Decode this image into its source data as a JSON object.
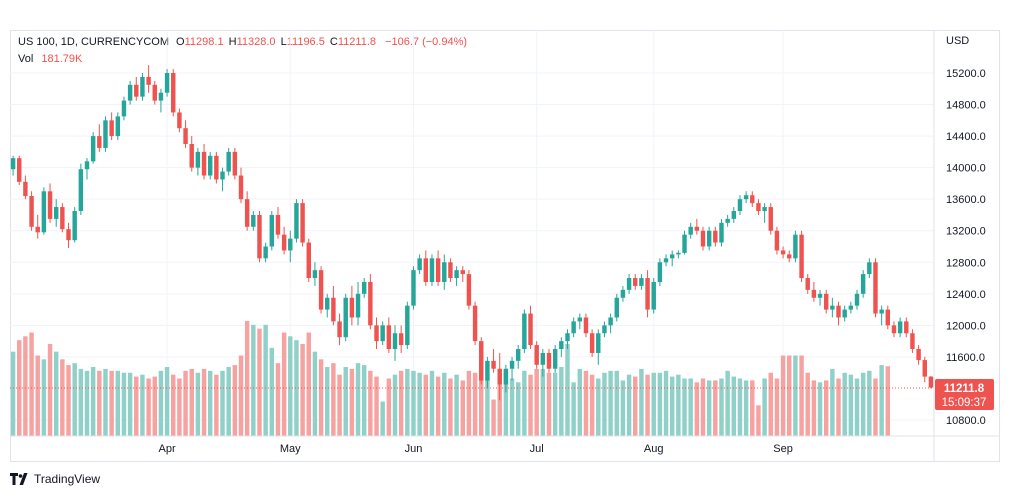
{
  "header": {
    "symbol": "US 100, 1D, CURRENCYCOM",
    "o_label": "O",
    "o_value": "11298.1",
    "h_label": "H",
    "h_value": "11328.0",
    "l_label": "L",
    "l_value": "11196.5",
    "c_label": "C",
    "c_value": "11211.8",
    "change": "−106.7 (−0.94%)",
    "vol_label": "Vol",
    "vol_value": "181.79K"
  },
  "price_scale": {
    "currency": "USD",
    "last_price": "11211.8",
    "countdown": "15:09:37"
  },
  "footer": {
    "brand": "TradingView"
  },
  "colors": {
    "up": "#26a69a",
    "down": "#ef5350",
    "up_vol": "#8fd1c8",
    "down_vol": "#f5a2a0",
    "grid": "#f0f3fa",
    "text": "#131722"
  },
  "chart_data": {
    "type": "candlestick",
    "x_axis_labels": [
      "Apr",
      "May",
      "Jun",
      "Jul",
      "Aug",
      "Sep"
    ],
    "y_ticks": [
      15200.0,
      14800.0,
      14400.0,
      14000.0,
      13600.0,
      13200.0,
      12800.0,
      12400.0,
      12000.0,
      11600.0,
      10800.0
    ],
    "y_tick_labels": [
      "15200.0",
      "14800.0",
      "14400.0",
      "14000.0",
      "13600.0",
      "13200.0",
      "12800.0",
      "12400.0",
      "12000.0",
      "11600.0",
      "10800.0"
    ],
    "ylim": [
      10700,
      15500
    ],
    "grid": true,
    "month_start_index": {
      "Apr": 25,
      "May": 45,
      "Jun": 65,
      "Jul": 85,
      "Aug": 104,
      "Sep": 125
    },
    "candles": [
      [
        13980,
        14150,
        13900,
        14120
      ],
      [
        14120,
        14150,
        13780,
        13820
      ],
      [
        13820,
        13900,
        13600,
        13640
      ],
      [
        13640,
        13700,
        13200,
        13250
      ],
      [
        13250,
        13400,
        13100,
        13180
      ],
      [
        13180,
        13750,
        13150,
        13700
      ],
      [
        13700,
        13800,
        13300,
        13350
      ],
      [
        13350,
        13600,
        13250,
        13500
      ],
      [
        13500,
        13550,
        13180,
        13220
      ],
      [
        13220,
        13300,
        12980,
        13080
      ],
      [
        13080,
        13500,
        13050,
        13450
      ],
      [
        13450,
        14050,
        13400,
        13980
      ],
      [
        13980,
        14120,
        13850,
        14080
      ],
      [
        14080,
        14450,
        14050,
        14400
      ],
      [
        14400,
        14550,
        14200,
        14250
      ],
      [
        14250,
        14650,
        14200,
        14600
      ],
      [
        14600,
        14700,
        14350,
        14400
      ],
      [
        14400,
        14700,
        14350,
        14650
      ],
      [
        14650,
        14900,
        14600,
        14850
      ],
      [
        14850,
        15100,
        14800,
        15050
      ],
      [
        15050,
        15150,
        14850,
        14900
      ],
      [
        14900,
        15200,
        14850,
        15150
      ],
      [
        15150,
        15300,
        14950,
        15050
      ],
      [
        15050,
        15100,
        14800,
        14850
      ],
      [
        14850,
        15000,
        14700,
        14950
      ],
      [
        14950,
        15250,
        14900,
        15200
      ],
      [
        15200,
        15250,
        14650,
        14700
      ],
      [
        14700,
        14750,
        14450,
        14500
      ],
      [
        14500,
        14600,
        14250,
        14300
      ],
      [
        14300,
        14400,
        13950,
        14000
      ],
      [
        14000,
        14250,
        13900,
        14200
      ],
      [
        14200,
        14300,
        13850,
        13900
      ],
      [
        13900,
        14200,
        13850,
        14150
      ],
      [
        14150,
        14200,
        13800,
        13850
      ],
      [
        13850,
        14000,
        13700,
        13950
      ],
      [
        13950,
        14250,
        13900,
        14200
      ],
      [
        14200,
        14250,
        13850,
        13900
      ],
      [
        13900,
        14000,
        13550,
        13600
      ],
      [
        13600,
        13700,
        13200,
        13250
      ],
      [
        13250,
        13450,
        13200,
        13400
      ],
      [
        13400,
        13450,
        12800,
        12850
      ],
      [
        12850,
        13050,
        12800,
        13000
      ],
      [
        13000,
        13450,
        12950,
        13400
      ],
      [
        13400,
        13500,
        13100,
        13150
      ],
      [
        13150,
        13250,
        12900,
        12950
      ],
      [
        12950,
        13200,
        12800,
        13100
      ],
      [
        13100,
        13600,
        13050,
        13550
      ],
      [
        13550,
        13600,
        13000,
        13050
      ],
      [
        13050,
        13100,
        12550,
        12600
      ],
      [
        12600,
        12800,
        12500,
        12700
      ],
      [
        12700,
        12750,
        12150,
        12200
      ],
      [
        12200,
        12400,
        12100,
        12350
      ],
      [
        12350,
        12500,
        12000,
        12050
      ],
      [
        12050,
        12150,
        11750,
        11850
      ],
      [
        11850,
        12400,
        11800,
        12350
      ],
      [
        12350,
        12500,
        12000,
        12100
      ],
      [
        12100,
        12550,
        12000,
        12400
      ],
      [
        12400,
        12600,
        12350,
        12550
      ],
      [
        12550,
        12650,
        11950,
        12000
      ],
      [
        12000,
        12100,
        11700,
        11800
      ],
      [
        11800,
        12050,
        11750,
        12000
      ],
      [
        12000,
        12100,
        11650,
        11700
      ],
      [
        11700,
        12000,
        11550,
        11900
      ],
      [
        11900,
        12000,
        11650,
        11750
      ],
      [
        11750,
        12300,
        11700,
        12250
      ],
      [
        12250,
        12750,
        12200,
        12700
      ],
      [
        12700,
        12900,
        12650,
        12850
      ],
      [
        12850,
        12950,
        12500,
        12550
      ],
      [
        12550,
        12900,
        12500,
        12850
      ],
      [
        12850,
        12950,
        12500,
        12550
      ],
      [
        12550,
        12900,
        12450,
        12800
      ],
      [
        12800,
        12850,
        12550,
        12600
      ],
      [
        12600,
        12750,
        12500,
        12700
      ],
      [
        12700,
        12750,
        12550,
        12650
      ],
      [
        12650,
        12700,
        12200,
        12250
      ],
      [
        12250,
        12300,
        11750,
        11800
      ],
      [
        11800,
        11850,
        11250,
        11300
      ],
      [
        11300,
        11600,
        11200,
        11550
      ],
      [
        11550,
        11700,
        11400,
        11450
      ],
      [
        11450,
        11650,
        11050,
        11250
      ],
      [
        11250,
        11500,
        11150,
        11450
      ],
      [
        11450,
        11600,
        11300,
        11550
      ],
      [
        11550,
        11750,
        11450,
        11700
      ],
      [
        11700,
        12200,
        11650,
        12150
      ],
      [
        12150,
        12250,
        11700,
        11750
      ],
      [
        11750,
        11800,
        11450,
        11500
      ],
      [
        11500,
        11700,
        11350,
        11650
      ],
      [
        11650,
        11700,
        11400,
        11450
      ],
      [
        11450,
        11750,
        11400,
        11700
      ],
      [
        11700,
        11850,
        11600,
        11800
      ],
      [
        11800,
        11950,
        11700,
        11900
      ],
      [
        11900,
        12100,
        11850,
        12050
      ],
      [
        12050,
        12150,
        11950,
        12100
      ],
      [
        12100,
        12150,
        11850,
        11900
      ],
      [
        11900,
        11950,
        11600,
        11650
      ],
      [
        11650,
        11950,
        11500,
        11900
      ],
      [
        11900,
        12050,
        11850,
        12000
      ],
      [
        12000,
        12150,
        11900,
        12100
      ],
      [
        12100,
        12400,
        12050,
        12350
      ],
      [
        12350,
        12500,
        12300,
        12450
      ],
      [
        12450,
        12650,
        12400,
        12600
      ],
      [
        12600,
        12650,
        12450,
        12500
      ],
      [
        12500,
        12650,
        12450,
        12600
      ],
      [
        12600,
        12700,
        12100,
        12200
      ],
      [
        12200,
        12600,
        12150,
        12550
      ],
      [
        12550,
        12850,
        12500,
        12800
      ],
      [
        12800,
        12900,
        12750,
        12850
      ],
      [
        12850,
        12950,
        12750,
        12900
      ],
      [
        12900,
        12950,
        12850,
        12920
      ],
      [
        12920,
        13200,
        12900,
        13150
      ],
      [
        13150,
        13300,
        13100,
        13250
      ],
      [
        13250,
        13350,
        13150,
        13200
      ],
      [
        13200,
        13250,
        12950,
        13000
      ],
      [
        13000,
        13250,
        12950,
        13200
      ],
      [
        13200,
        13250,
        13000,
        13050
      ],
      [
        13050,
        13350,
        13000,
        13300
      ],
      [
        13300,
        13400,
        13250,
        13350
      ],
      [
        13350,
        13500,
        13300,
        13450
      ],
      [
        13450,
        13650,
        13400,
        13600
      ],
      [
        13600,
        13700,
        13550,
        13650
      ],
      [
        13650,
        13700,
        13500,
        13550
      ],
      [
        13550,
        13600,
        13400,
        13450
      ],
      [
        13450,
        13550,
        13300,
        13500
      ],
      [
        13500,
        13550,
        13150,
        13200
      ],
      [
        13200,
        13250,
        12900,
        12950
      ],
      [
        12950,
        13000,
        12850,
        12900
      ],
      [
        12900,
        12950,
        12800,
        12850
      ],
      [
        12850,
        13200,
        12800,
        13150
      ],
      [
        13150,
        13200,
        12550,
        12600
      ],
      [
        12600,
        12650,
        12400,
        12450
      ],
      [
        12450,
        12550,
        12300,
        12350
      ],
      [
        12350,
        12450,
        12250,
        12400
      ],
      [
        12400,
        12450,
        12150,
        12200
      ],
      [
        12200,
        12350,
        12100,
        12250
      ],
      [
        12250,
        12300,
        12000,
        12100
      ],
      [
        12100,
        12250,
        12050,
        12200
      ],
      [
        12200,
        12300,
        12150,
        12250
      ],
      [
        12250,
        12450,
        12200,
        12400
      ],
      [
        12400,
        12700,
        12350,
        12650
      ],
      [
        12650,
        12850,
        12600,
        12800
      ],
      [
        12800,
        12850,
        12100,
        12150
      ],
      [
        12150,
        12250,
        12000,
        12200
      ],
      [
        12200,
        12250,
        11950,
        12000
      ],
      [
        12000,
        12050,
        11850,
        11900
      ],
      [
        11900,
        12100,
        11850,
        12050
      ],
      [
        12050,
        12100,
        11850,
        11900
      ],
      [
        11900,
        11950,
        11650,
        11700
      ],
      [
        11700,
        11750,
        11500,
        11560
      ],
      [
        11560,
        11600,
        11280,
        11350
      ],
      [
        11350,
        11360,
        11200,
        11212
      ]
    ],
    "volume_k": [
      220,
      250,
      260,
      270,
      210,
      200,
      240,
      220,
      200,
      185,
      190,
      175,
      170,
      180,
      170,
      175,
      170,
      170,
      165,
      165,
      155,
      160,
      150,
      155,
      170,
      180,
      160,
      150,
      170,
      175,
      165,
      175,
      170,
      160,
      170,
      180,
      185,
      210,
      300,
      290,
      280,
      290,
      230,
      190,
      270,
      260,
      250,
      240,
      270,
      220,
      200,
      180,
      190,
      160,
      180,
      175,
      190,
      185,
      170,
      155,
      90,
      150,
      160,
      170,
      175,
      170,
      165,
      160,
      170,
      155,
      165,
      150,
      160,
      145,
      170,
      165,
      160,
      150,
      95,
      165,
      170,
      150,
      140,
      170,
      160,
      175,
      175,
      165,
      165,
      180,
      240,
      140,
      175,
      170,
      160,
      150,
      165,
      170,
      170,
      145,
      160,
      155,
      175,
      160,
      165,
      165,
      170,
      155,
      160,
      150,
      150,
      140,
      150,
      145,
      145,
      150,
      170,
      155,
      150,
      145,
      145,
      80,
      150,
      165,
      150,
      210,
      210,
      210,
      210,
      165,
      145,
      140,
      145,
      175,
      150,
      165,
      160,
      150,
      165,
      170,
      150,
      185,
      182
    ]
  }
}
